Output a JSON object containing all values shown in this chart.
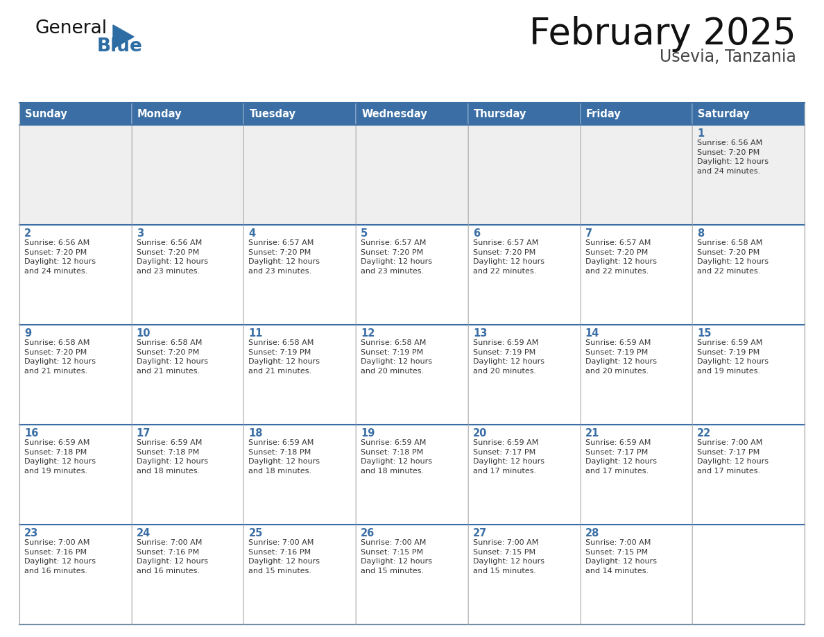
{
  "title": "February 2025",
  "subtitle": "Usevia, Tanzania",
  "days_of_week": [
    "Sunday",
    "Monday",
    "Tuesday",
    "Wednesday",
    "Thursday",
    "Friday",
    "Saturday"
  ],
  "header_bg": "#3A6EA5",
  "header_text": "#FFFFFF",
  "cell_bg_light": "#EFEFEF",
  "cell_bg_white": "#FFFFFF",
  "cell_border_color": "#AAAAAA",
  "row_separator_color": "#3A6EA5",
  "day_number_color": "#3A6EA5",
  "cell_text_color": "#333333",
  "title_color": "#111111",
  "subtitle_color": "#444444",
  "logo_general_color": "#111111",
  "logo_blue_color": "#2E6DA4",
  "weeks": [
    [
      {
        "day": null,
        "info": null
      },
      {
        "day": null,
        "info": null
      },
      {
        "day": null,
        "info": null
      },
      {
        "day": null,
        "info": null
      },
      {
        "day": null,
        "info": null
      },
      {
        "day": null,
        "info": null
      },
      {
        "day": 1,
        "info": "Sunrise: 6:56 AM\nSunset: 7:20 PM\nDaylight: 12 hours\nand 24 minutes."
      }
    ],
    [
      {
        "day": 2,
        "info": "Sunrise: 6:56 AM\nSunset: 7:20 PM\nDaylight: 12 hours\nand 24 minutes."
      },
      {
        "day": 3,
        "info": "Sunrise: 6:56 AM\nSunset: 7:20 PM\nDaylight: 12 hours\nand 23 minutes."
      },
      {
        "day": 4,
        "info": "Sunrise: 6:57 AM\nSunset: 7:20 PM\nDaylight: 12 hours\nand 23 minutes."
      },
      {
        "day": 5,
        "info": "Sunrise: 6:57 AM\nSunset: 7:20 PM\nDaylight: 12 hours\nand 23 minutes."
      },
      {
        "day": 6,
        "info": "Sunrise: 6:57 AM\nSunset: 7:20 PM\nDaylight: 12 hours\nand 22 minutes."
      },
      {
        "day": 7,
        "info": "Sunrise: 6:57 AM\nSunset: 7:20 PM\nDaylight: 12 hours\nand 22 minutes."
      },
      {
        "day": 8,
        "info": "Sunrise: 6:58 AM\nSunset: 7:20 PM\nDaylight: 12 hours\nand 22 minutes."
      }
    ],
    [
      {
        "day": 9,
        "info": "Sunrise: 6:58 AM\nSunset: 7:20 PM\nDaylight: 12 hours\nand 21 minutes."
      },
      {
        "day": 10,
        "info": "Sunrise: 6:58 AM\nSunset: 7:20 PM\nDaylight: 12 hours\nand 21 minutes."
      },
      {
        "day": 11,
        "info": "Sunrise: 6:58 AM\nSunset: 7:19 PM\nDaylight: 12 hours\nand 21 minutes."
      },
      {
        "day": 12,
        "info": "Sunrise: 6:58 AM\nSunset: 7:19 PM\nDaylight: 12 hours\nand 20 minutes."
      },
      {
        "day": 13,
        "info": "Sunrise: 6:59 AM\nSunset: 7:19 PM\nDaylight: 12 hours\nand 20 minutes."
      },
      {
        "day": 14,
        "info": "Sunrise: 6:59 AM\nSunset: 7:19 PM\nDaylight: 12 hours\nand 20 minutes."
      },
      {
        "day": 15,
        "info": "Sunrise: 6:59 AM\nSunset: 7:19 PM\nDaylight: 12 hours\nand 19 minutes."
      }
    ],
    [
      {
        "day": 16,
        "info": "Sunrise: 6:59 AM\nSunset: 7:18 PM\nDaylight: 12 hours\nand 19 minutes."
      },
      {
        "day": 17,
        "info": "Sunrise: 6:59 AM\nSunset: 7:18 PM\nDaylight: 12 hours\nand 18 minutes."
      },
      {
        "day": 18,
        "info": "Sunrise: 6:59 AM\nSunset: 7:18 PM\nDaylight: 12 hours\nand 18 minutes."
      },
      {
        "day": 19,
        "info": "Sunrise: 6:59 AM\nSunset: 7:18 PM\nDaylight: 12 hours\nand 18 minutes."
      },
      {
        "day": 20,
        "info": "Sunrise: 6:59 AM\nSunset: 7:17 PM\nDaylight: 12 hours\nand 17 minutes."
      },
      {
        "day": 21,
        "info": "Sunrise: 6:59 AM\nSunset: 7:17 PM\nDaylight: 12 hours\nand 17 minutes."
      },
      {
        "day": 22,
        "info": "Sunrise: 7:00 AM\nSunset: 7:17 PM\nDaylight: 12 hours\nand 17 minutes."
      }
    ],
    [
      {
        "day": 23,
        "info": "Sunrise: 7:00 AM\nSunset: 7:16 PM\nDaylight: 12 hours\nand 16 minutes."
      },
      {
        "day": 24,
        "info": "Sunrise: 7:00 AM\nSunset: 7:16 PM\nDaylight: 12 hours\nand 16 minutes."
      },
      {
        "day": 25,
        "info": "Sunrise: 7:00 AM\nSunset: 7:16 PM\nDaylight: 12 hours\nand 15 minutes."
      },
      {
        "day": 26,
        "info": "Sunrise: 7:00 AM\nSunset: 7:15 PM\nDaylight: 12 hours\nand 15 minutes."
      },
      {
        "day": 27,
        "info": "Sunrise: 7:00 AM\nSunset: 7:15 PM\nDaylight: 12 hours\nand 15 minutes."
      },
      {
        "day": 28,
        "info": "Sunrise: 7:00 AM\nSunset: 7:15 PM\nDaylight: 12 hours\nand 14 minutes."
      },
      {
        "day": null,
        "info": null
      }
    ]
  ]
}
